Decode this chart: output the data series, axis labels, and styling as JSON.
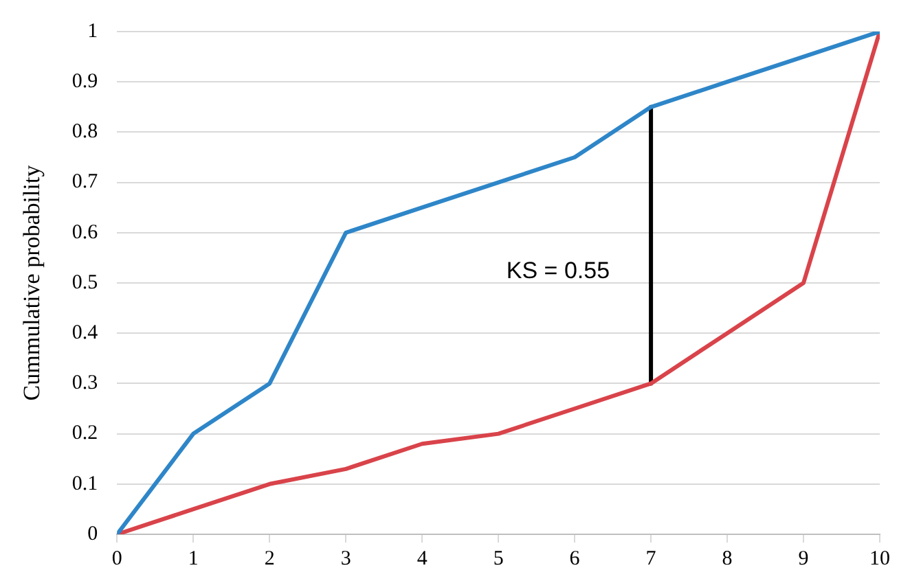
{
  "chart_data": {
    "type": "line",
    "ylabel": "Cummulative probability",
    "x": [
      0,
      1,
      2,
      3,
      4,
      5,
      6,
      7,
      8,
      9,
      10
    ],
    "series": [
      {
        "color": "#2e86c8",
        "values": [
          0,
          0.2,
          0.3,
          0.6,
          0.65,
          0.7,
          0.75,
          0.85,
          0.9,
          0.95,
          1
        ]
      },
      {
        "color": "#d9434a",
        "values": [
          0,
          0.05,
          0.1,
          0.13,
          0.18,
          0.2,
          0.25,
          0.3,
          0.4,
          0.5,
          1
        ]
      },
      {
        "color": "#000000",
        "x": [
          7,
          7
        ],
        "values": [
          0.3,
          0.85
        ]
      }
    ],
    "xlim": [
      0,
      10
    ],
    "xticks": [
      0,
      1,
      2,
      3,
      4,
      5,
      6,
      7,
      8,
      9,
      10
    ],
    "ylim": [
      0,
      1
    ],
    "yticks": [
      0,
      0.1,
      0.2,
      0.3,
      0.4,
      0.5,
      0.6,
      0.7,
      0.8,
      0.9,
      1
    ],
    "grid": "y",
    "legend": false,
    "marker": "none",
    "annotations": [
      {
        "text": "KS = 0.55",
        "x": 7,
        "y": 0.55
      }
    ]
  }
}
